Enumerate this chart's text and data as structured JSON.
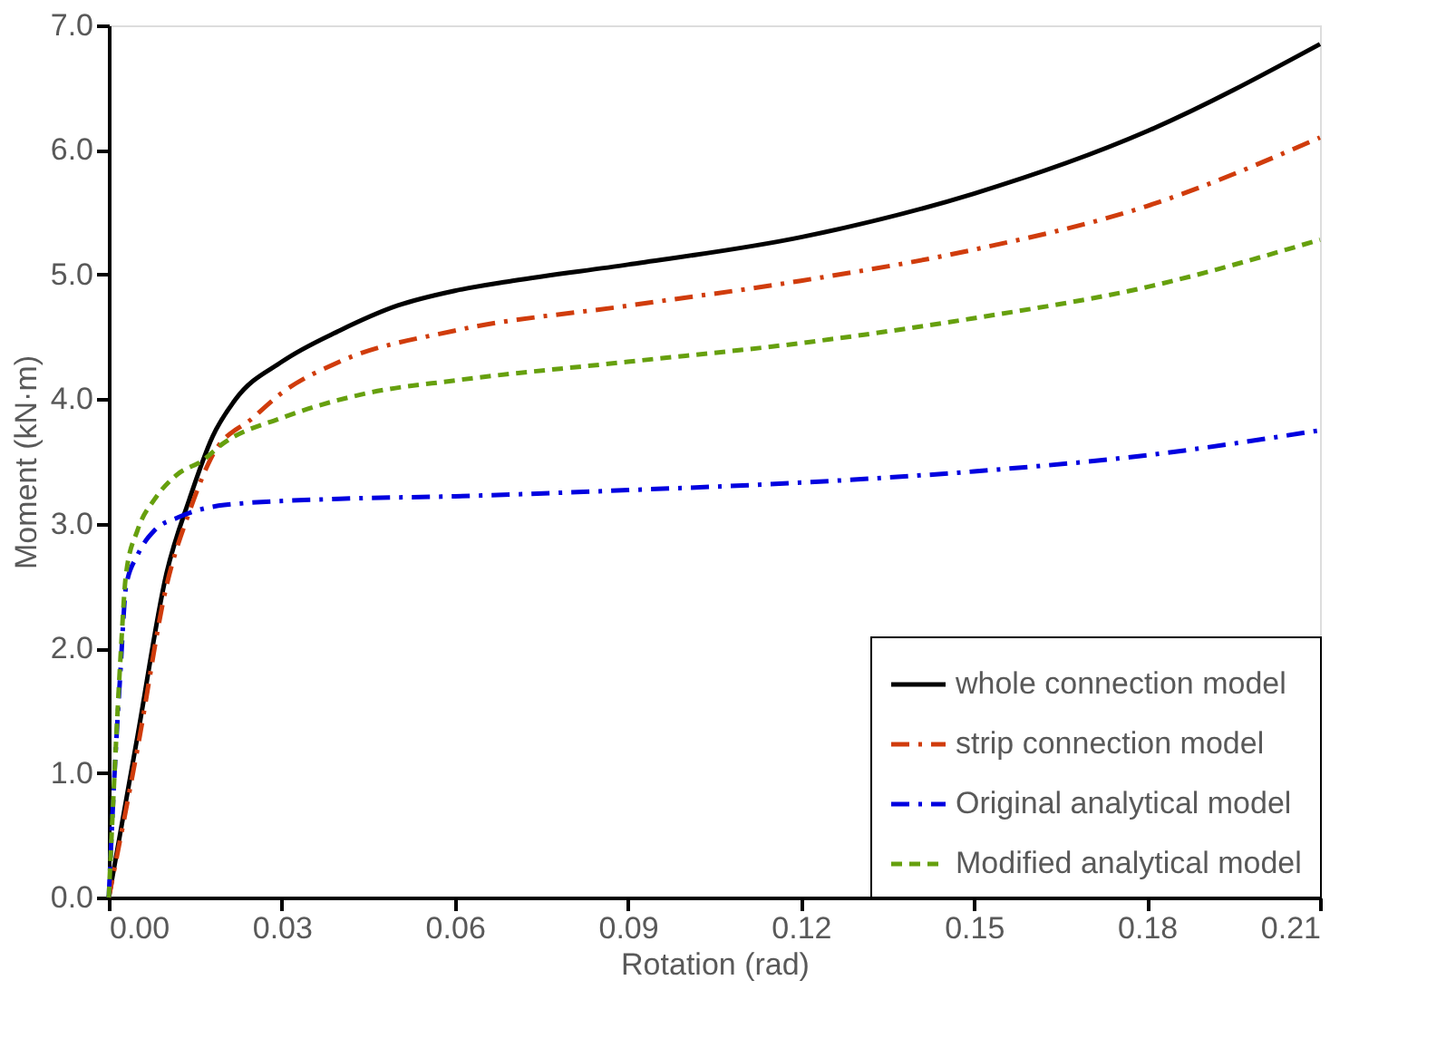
{
  "chart_data": {
    "type": "line",
    "xlabel": "Rotation (rad)",
    "ylabel": "Moment (kN·m)",
    "xlim": [
      0,
      0.21
    ],
    "xticks": [
      {
        "value": 0,
        "label": "0.00"
      },
      {
        "value": 0.03,
        "label": "0.03"
      },
      {
        "value": 0.06,
        "label": "0.06"
      },
      {
        "value": 0.09,
        "label": "0.09"
      },
      {
        "value": 0.12,
        "label": "0.12"
      },
      {
        "value": 0.15,
        "label": "0.15"
      },
      {
        "value": 0.18,
        "label": "0.18"
      },
      {
        "value": 0.21,
        "label": "0.21"
      }
    ],
    "ylim": [
      0,
      7
    ],
    "yticks": [
      {
        "value": 0,
        "label": "0.0"
      },
      {
        "value": 1,
        "label": "1.0"
      },
      {
        "value": 2,
        "label": "2.0"
      },
      {
        "value": 3,
        "label": "3.0"
      },
      {
        "value": 4,
        "label": "4.0"
      },
      {
        "value": 5,
        "label": "5.0"
      },
      {
        "value": 6,
        "label": "6.0"
      },
      {
        "value": 7,
        "label": "7.0"
      }
    ],
    "grid": false,
    "legend": "bottom right",
    "marker": "none",
    "series": [
      {
        "name": "whole connection model",
        "color": "#000000",
        "line_style": "solid",
        "x": [
          0,
          0.005,
          0.01,
          0.014,
          0.018,
          0.022,
          0.03,
          0.04,
          0.05,
          0.06,
          0.07,
          0.09,
          0.12,
          0.15,
          0.18,
          0.21
        ],
        "values": [
          0,
          1.3,
          2.6,
          3.2,
          3.7,
          4.0,
          4.3,
          4.55,
          4.75,
          4.87,
          4.95,
          5.08,
          5.3,
          5.65,
          6.15,
          6.85
        ]
      },
      {
        "name": "strip connection model",
        "color": "#d03c0c",
        "line_style": "dashdot",
        "x": [
          0,
          0.005,
          0.01,
          0.014,
          0.018,
          0.025,
          0.03,
          0.04,
          0.06,
          0.09,
          0.12,
          0.15,
          0.18,
          0.21
        ],
        "values": [
          0,
          1.2,
          2.5,
          3.1,
          3.55,
          3.85,
          4.05,
          4.3,
          4.55,
          4.75,
          4.95,
          5.2,
          5.55,
          6.1
        ]
      },
      {
        "name": "Original analytical model",
        "color": "#0000e0",
        "line_style": "dashdot",
        "x": [
          0,
          0.001,
          0.002,
          0.003,
          0.005,
          0.008,
          0.012,
          0.02,
          0.04,
          0.06,
          0.09,
          0.12,
          0.15,
          0.18,
          0.21
        ],
        "values": [
          0,
          1.0,
          1.8,
          2.5,
          2.75,
          2.95,
          3.05,
          3.15,
          3.2,
          3.22,
          3.27,
          3.33,
          3.42,
          3.55,
          3.75
        ]
      },
      {
        "name": "Modified analytical model",
        "color": "#66a00e",
        "line_style": "dashed",
        "x": [
          0,
          0.001,
          0.002,
          0.003,
          0.005,
          0.008,
          0.012,
          0.016,
          0.02,
          0.03,
          0.045,
          0.06,
          0.09,
          0.12,
          0.15,
          0.18,
          0.21
        ],
        "values": [
          0,
          1.0,
          1.9,
          2.6,
          2.95,
          3.2,
          3.4,
          3.5,
          3.65,
          3.85,
          4.05,
          4.15,
          4.3,
          4.45,
          4.65,
          4.9,
          5.28
        ]
      }
    ]
  }
}
